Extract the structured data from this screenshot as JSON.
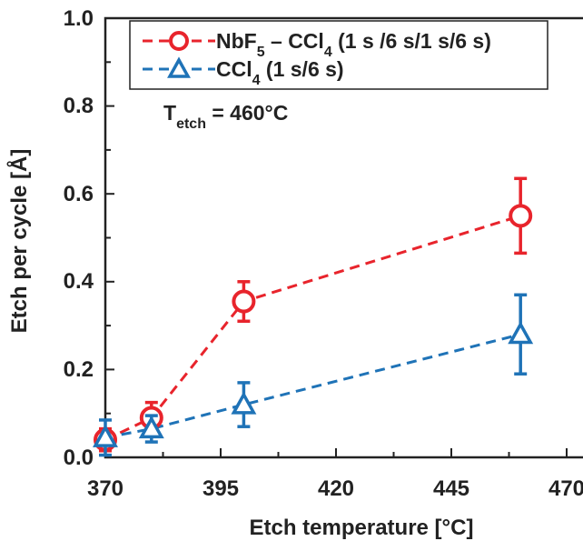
{
  "chart_data": {
    "type": "line",
    "xlabel": "Etch temperature [°C]",
    "ylabel": "Etch per cycle [Å]",
    "xlim": [
      370,
      470
    ],
    "ylim": [
      0.0,
      1.0
    ],
    "x_ticks": [
      "370",
      "395",
      "420",
      "445",
      "470"
    ],
    "y_ticks": [
      "0.0",
      "0.2",
      "0.4",
      "0.6",
      "0.8",
      "1.0"
    ],
    "grid": false,
    "legend_position": "top-right",
    "annotation": {
      "main": "T",
      "sub": "etch",
      "rest": " = 460°C"
    },
    "series": [
      {
        "name": "NbF5 – CCl4 (1 s /6 s/1 s/6 s)",
        "legend": {
          "a": "NbF",
          "a_sub": "5",
          "b": " – CCl",
          "b_sub": "4",
          "c": " (1 s /6 s/1 s/6 s)"
        },
        "color": "#e8242c",
        "marker": "circle",
        "x": [
          370,
          380,
          400,
          460
        ],
        "y": [
          0.04,
          0.09,
          0.355,
          0.55
        ],
        "err": [
          0.025,
          0.035,
          0.045,
          0.085
        ]
      },
      {
        "name": "CCl4 (1 s/6 s)",
        "legend": {
          "a": "CCl",
          "a_sub": "4",
          "b": " (1 s/6 s)"
        },
        "color": "#1f73b7",
        "marker": "triangle",
        "x": [
          370,
          380,
          400,
          460
        ],
        "y": [
          0.045,
          0.065,
          0.12,
          0.28
        ],
        "err": [
          0.04,
          0.03,
          0.05,
          0.09
        ]
      }
    ]
  }
}
